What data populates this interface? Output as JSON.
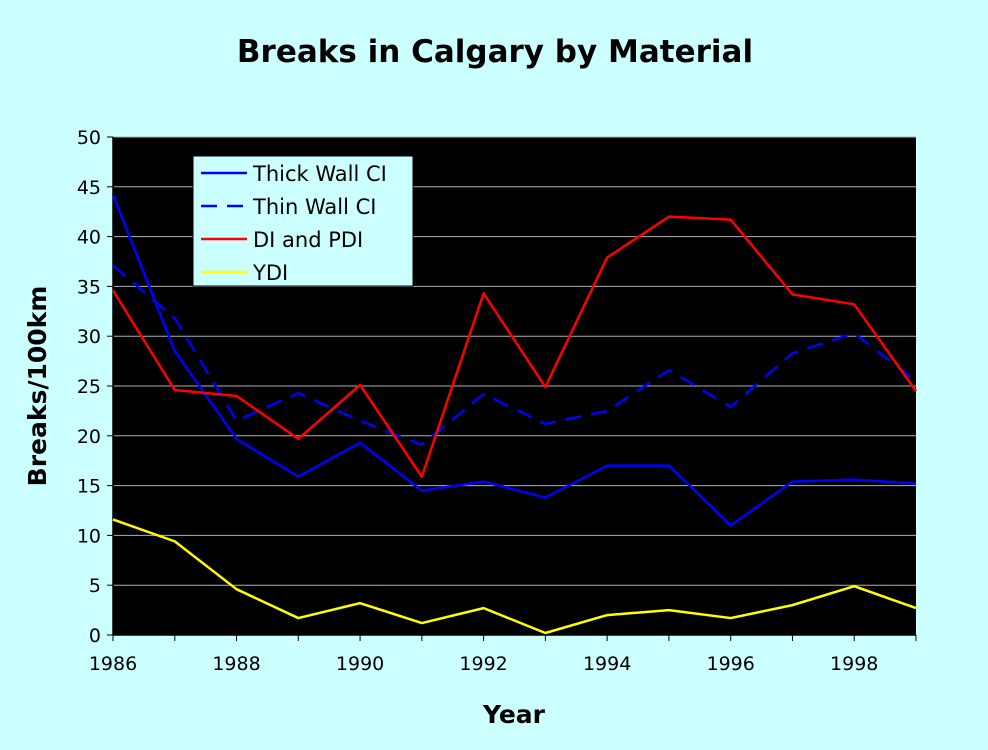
{
  "chart_data": {
    "type": "line",
    "title": "Breaks in Calgary by Material",
    "xlabel": "Year",
    "ylabel": "Breaks/100km",
    "xlim": [
      1986,
      1999
    ],
    "ylim": [
      0,
      50
    ],
    "x_ticks": [
      "1986",
      "1988",
      "1990",
      "1992",
      "1994",
      "1996",
      "1998"
    ],
    "y_ticks": [
      "0",
      "5",
      "10",
      "15",
      "20",
      "25",
      "30",
      "35",
      "40",
      "45",
      "50"
    ],
    "grid": true,
    "legend_position": "top-left",
    "plot_background": "#000000",
    "page_background": "#ccffff",
    "x": [
      1986,
      1987,
      1988,
      1989,
      1990,
      1991,
      1992,
      1993,
      1994,
      1995,
      1996,
      1997,
      1998,
      1999
    ],
    "series": [
      {
        "name": "Thick Wall CI",
        "color": "#0000ff",
        "dash": "solid",
        "values": [
          44.2,
          28.5,
          19.7,
          15.9,
          19.3,
          14.5,
          15.4,
          13.8,
          17.0,
          17.0,
          11.0,
          15.4,
          15.6,
          15.2
        ]
      },
      {
        "name": "Thin Wall CI",
        "color": "#0000ff",
        "dash": "dashed",
        "values": [
          37.1,
          31.8,
          21.5,
          24.3,
          21.5,
          19.1,
          24.2,
          21.2,
          22.5,
          26.6,
          22.9,
          28.3,
          30.3,
          25.5
        ]
      },
      {
        "name": "DI and PDI",
        "color": "#ff0000",
        "dash": "solid",
        "values": [
          34.6,
          24.6,
          24.0,
          19.7,
          25.1,
          15.9,
          34.3,
          24.9,
          37.9,
          42.0,
          41.7,
          34.2,
          33.2,
          24.5
        ]
      },
      {
        "name": "YDI",
        "color": "#ffff00",
        "dash": "solid",
        "values": [
          11.6,
          9.4,
          4.6,
          1.7,
          3.2,
          1.2,
          2.7,
          0.2,
          2.0,
          2.5,
          1.7,
          3.0,
          4.9,
          2.7
        ]
      }
    ]
  }
}
